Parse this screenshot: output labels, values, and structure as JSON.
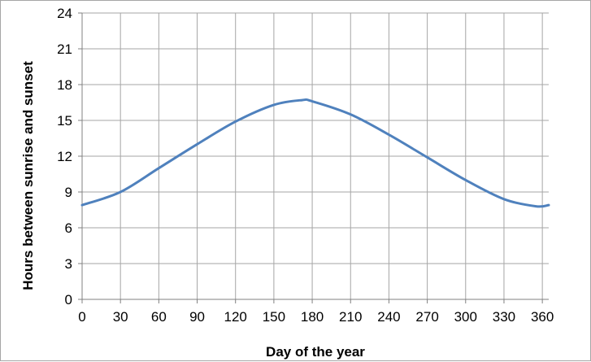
{
  "chart_data": {
    "type": "line",
    "xlabel": "Day of the year",
    "ylabel": "Hours between sunrise and sunset",
    "xlim": [
      0,
      365
    ],
    "ylim": [
      0,
      24
    ],
    "x_ticks": [
      0,
      30,
      60,
      90,
      120,
      150,
      180,
      210,
      240,
      270,
      300,
      330,
      360
    ],
    "y_ticks": [
      0,
      3,
      6,
      9,
      12,
      15,
      18,
      21,
      24
    ],
    "grid": true,
    "legend": "none",
    "colors": {
      "line": "#4f81bd",
      "grid": "#a6a6a6",
      "axis": "#808080"
    },
    "series": [
      {
        "x": [
          0,
          30,
          60,
          90,
          120,
          150,
          172,
          180,
          210,
          240,
          270,
          300,
          330,
          355,
          365
        ],
        "y": [
          7.9,
          9.0,
          11.0,
          13.0,
          14.9,
          16.3,
          16.7,
          16.6,
          15.5,
          13.8,
          11.9,
          10.0,
          8.4,
          7.8,
          7.9
        ]
      }
    ]
  }
}
